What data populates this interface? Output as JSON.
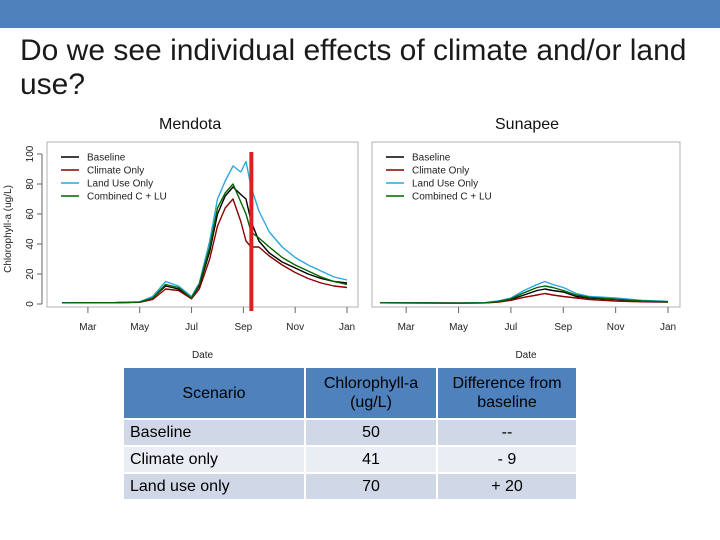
{
  "slide": {
    "title": "Do we see individual effects of climate and/or land use?"
  },
  "table": {
    "headers": [
      "Scenario",
      "Chlorophyll-a (ug/L)",
      "Difference from baseline"
    ],
    "rows": [
      [
        "Baseline",
        "50",
        "--"
      ],
      [
        "Climate only",
        "41",
        "-  9"
      ],
      [
        "Land use only",
        "70",
        "+ 20"
      ]
    ]
  },
  "colors": {
    "header_bar": "#4f81bd",
    "baseline": "#000000",
    "climate_only": "#8b0000",
    "land_use_only": "#29a8e0",
    "combined": "#006400",
    "marker": "#e02020"
  },
  "chart_data": [
    {
      "type": "line",
      "panel_title": "Mendota",
      "xlabel": "Date",
      "ylabel": "Chlorophyll-a (ug/L)",
      "ylim": [
        0,
        100
      ],
      "yticks": [
        0,
        20,
        40,
        60,
        80,
        100
      ],
      "x_ticks": [
        "Mar",
        "May",
        "Jul",
        "Sep",
        "Nov",
        "Jan"
      ],
      "x_tick_months": [
        2,
        4,
        6,
        8,
        10,
        12
      ],
      "xlim": [
        1,
        12
      ],
      "legend": [
        "Baseline",
        "Climate Only",
        "Land Use Only",
        "Combined C + LU"
      ],
      "legend_position": "top-left",
      "marker_month": 8,
      "series": [
        {
          "name": "Baseline",
          "color": "#000000",
          "x": [
            1,
            3,
            4,
            4.5,
            5,
            5.5,
            6,
            6.3,
            6.7,
            7,
            7.3,
            7.6,
            7.9,
            8.1,
            8.3,
            8.6,
            9,
            9.5,
            10,
            10.5,
            11,
            11.5,
            12
          ],
          "y": [
            0.8,
            0.9,
            1.3,
            4,
            12,
            10,
            4,
            12,
            35,
            60,
            72,
            78,
            73,
            70,
            55,
            42,
            34,
            28,
            24,
            20,
            17,
            15,
            14
          ]
        },
        {
          "name": "Climate Only",
          "color": "#8b0000",
          "x": [
            1,
            3,
            4,
            4.5,
            5,
            5.5,
            6,
            6.3,
            6.7,
            7,
            7.3,
            7.6,
            7.9,
            8.1,
            8.3,
            8.6,
            9,
            9.5,
            10,
            10.5,
            11,
            11.5,
            12
          ],
          "y": [
            0.8,
            0.9,
            1.1,
            3,
            10,
            9,
            3.5,
            10,
            30,
            52,
            64,
            70,
            55,
            42,
            38,
            38,
            32,
            26,
            21,
            17,
            14,
            12,
            11
          ]
        },
        {
          "name": "Land Use Only",
          "color": "#29a8e0",
          "x": [
            1,
            3,
            4,
            4.5,
            5,
            5.5,
            6,
            6.3,
            6.7,
            7,
            7.3,
            7.6,
            7.9,
            8.1,
            8.3,
            8.6,
            9,
            9.5,
            10,
            10.5,
            11,
            11.5,
            12
          ],
          "y": [
            0.8,
            0.9,
            1.5,
            5,
            15,
            12,
            5,
            14,
            42,
            70,
            82,
            92,
            88,
            95,
            78,
            62,
            48,
            38,
            31,
            26,
            22,
            18,
            16
          ]
        },
        {
          "name": "Combined C + LU",
          "color": "#006400",
          "x": [
            1,
            3,
            4,
            4.5,
            5,
            5.5,
            6,
            6.3,
            6.7,
            7,
            7.3,
            7.6,
            7.9,
            8.1,
            8.3,
            8.6,
            9,
            9.5,
            10,
            10.5,
            11,
            11.5,
            12
          ],
          "y": [
            0.8,
            0.9,
            1.3,
            4,
            13,
            11,
            4,
            13,
            38,
            64,
            74,
            80,
            68,
            60,
            48,
            44,
            38,
            31,
            26,
            22,
            18,
            15,
            13
          ]
        }
      ]
    },
    {
      "type": "line",
      "panel_title": "Sunapee",
      "xlabel": "Date",
      "ylabel": "",
      "ylim": [
        0,
        100
      ],
      "x_ticks": [
        "Mar",
        "May",
        "Jul",
        "Sep",
        "Nov",
        "Jan"
      ],
      "x_tick_months": [
        2,
        4,
        6,
        8,
        10,
        12
      ],
      "xlim": [
        1,
        12
      ],
      "legend": [
        "Baseline",
        "Climate Only",
        "Land Use Only",
        "Combined C + LU"
      ],
      "legend_position": "top-left",
      "series": [
        {
          "name": "Baseline",
          "color": "#000000",
          "x": [
            1,
            3,
            4,
            5,
            5.5,
            6,
            6.5,
            7,
            7.3,
            7.6,
            8,
            8.5,
            9,
            10,
            11,
            12
          ],
          "y": [
            0.8,
            0.7,
            0.6,
            0.8,
            1.5,
            3,
            6,
            9,
            10,
            9,
            8,
            5,
            4,
            3,
            2,
            1.5
          ]
        },
        {
          "name": "Climate Only",
          "color": "#8b0000",
          "x": [
            1,
            3,
            4,
            5,
            5.5,
            6,
            6.5,
            7,
            7.3,
            7.6,
            8,
            8.5,
            9,
            10,
            11,
            12
          ],
          "y": [
            0.8,
            0.7,
            0.6,
            0.7,
            1.2,
            2.5,
            4.5,
            6,
            7,
            6,
            5,
            4,
            3,
            2,
            1.5,
            1.2
          ]
        },
        {
          "name": "Land Use Only",
          "color": "#29a8e0",
          "x": [
            1,
            3,
            4,
            5,
            5.5,
            6,
            6.5,
            7,
            7.3,
            7.6,
            8,
            8.5,
            9,
            10,
            11,
            12
          ],
          "y": [
            0.8,
            0.7,
            0.6,
            0.9,
            2,
            4,
            9,
            13,
            15,
            13,
            11,
            7,
            5,
            4,
            2.5,
            1.8
          ]
        },
        {
          "name": "Combined C + LU",
          "color": "#006400",
          "x": [
            1,
            3,
            4,
            5,
            5.5,
            6,
            6.5,
            7,
            7.3,
            7.6,
            8,
            8.5,
            9,
            10,
            11,
            12
          ],
          "y": [
            0.8,
            0.7,
            0.6,
            0.8,
            1.6,
            3.5,
            7.5,
            11,
            12,
            11,
            9,
            6,
            4.5,
            3.2,
            2,
            1.5
          ]
        }
      ]
    }
  ]
}
